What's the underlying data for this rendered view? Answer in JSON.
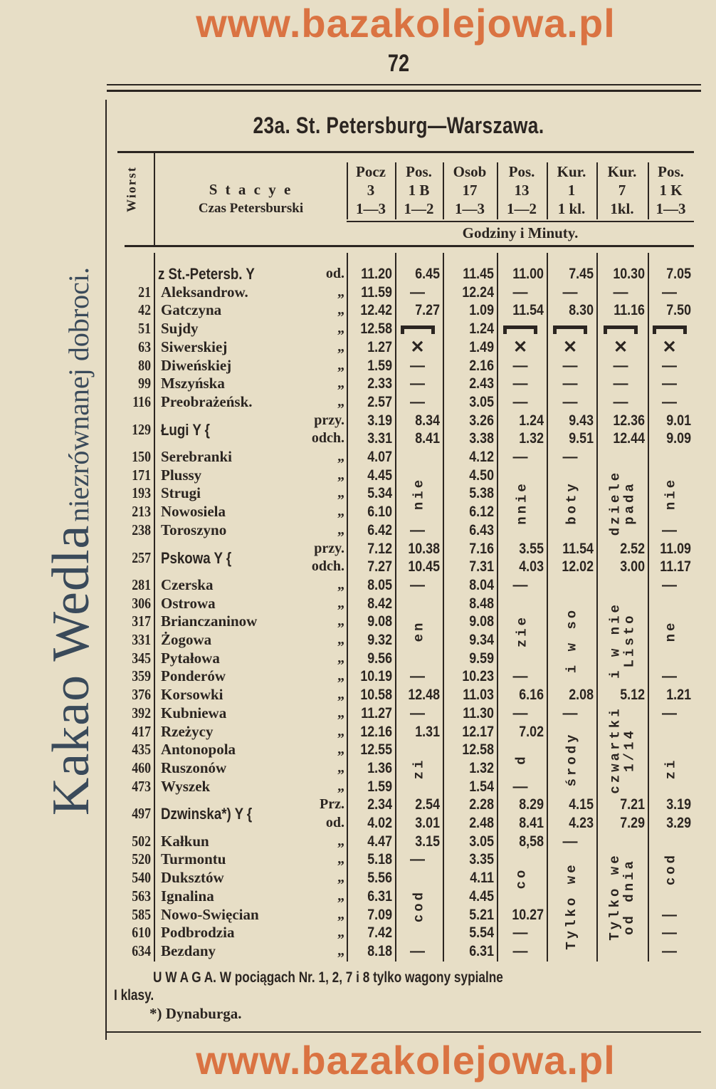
{
  "page_number": "72",
  "advert": {
    "brand": "Kakao Wedla",
    "slogan": "niezrównanej dobroci."
  },
  "watermark": "www.bazakolejowa.pl",
  "title": "23a. St. Petersburg—Warszawa.",
  "header": {
    "wiorst": "Wiorst",
    "stations_label": "S t a c y e",
    "time_zone": "Czas Petersburski",
    "units": "Godziny i Minuty.",
    "columns": [
      {
        "type": "Pocz",
        "number": "3",
        "classes": "1—3"
      },
      {
        "type": "Pos.",
        "number": "1 B",
        "classes": "1—2"
      },
      {
        "type": "Osob",
        "number": "17",
        "classes": "1—3"
      },
      {
        "type": "Pos.",
        "number": "13",
        "classes": "1—2"
      },
      {
        "type": "Kur.",
        "number": "1",
        "classes": "1 kl."
      },
      {
        "type": "Kur.",
        "number": "7",
        "classes": "1kl."
      },
      {
        "type": "Pos.",
        "number": "1 K",
        "classes": "1—3"
      }
    ]
  },
  "rows": [
    {
      "km": "",
      "station": "z St.-Petersb. Y",
      "suffix": "od.",
      "big": true,
      "times": [
        "11.20",
        "6.45",
        "11.45",
        "11.00",
        "7.45",
        "10.30",
        "7.05"
      ]
    },
    {
      "km": "21",
      "station": "Aleksandrow.",
      "suffix": "„",
      "times": [
        "11.59",
        "—",
        "12.24",
        "—",
        "—",
        "—",
        "—"
      ]
    },
    {
      "km": "42",
      "station": "Gatczyna",
      "suffix": "„",
      "times": [
        "12.42",
        "7.27",
        "1.09",
        "11.54",
        "8.30",
        "11.16",
        "7.50"
      ]
    },
    {
      "km": "51",
      "station": "Sujdy",
      "suffix": "„",
      "times": [
        "12.58",
        "bed",
        "1.24",
        "bed",
        "bed",
        "bed",
        "bed"
      ]
    },
    {
      "km": "63",
      "station": "Siwerskiej",
      "suffix": "„",
      "times": [
        "1.27",
        "x",
        "1.49",
        "x",
        "x",
        "x",
        "x"
      ]
    },
    {
      "km": "80",
      "station": "Diweńskiej",
      "suffix": "„",
      "times": [
        "1.59",
        "—",
        "2.16",
        "—",
        "—",
        "—",
        "—"
      ]
    },
    {
      "km": "99",
      "station": "Mszyńska",
      "suffix": "„",
      "times": [
        "2.33",
        "—",
        "2.43",
        "—",
        "—",
        "—",
        "—"
      ]
    },
    {
      "km": "116",
      "station": "Preobrażeńsk.",
      "suffix": "„",
      "times": [
        "2.57",
        "—",
        "3.05",
        "—",
        "—",
        "—",
        "—"
      ]
    },
    {
      "km": "129",
      "station": "Ługi Y {",
      "suffix": "przy.",
      "big": true,
      "times": [
        "3.19",
        "8.34",
        "3.26",
        "1.24",
        "9.43",
        "12.36",
        "9.01"
      ]
    },
    {
      "km": "",
      "station": "",
      "suffix": "odch.",
      "times": [
        "3.31",
        "8.41",
        "3.38",
        "1.32",
        "9.51",
        "12.44",
        "9.09"
      ]
    },
    {
      "km": "150",
      "station": "Serebranki",
      "suffix": "„",
      "times": [
        "4.07",
        "",
        "4.12",
        "—",
        "—",
        "",
        ""
      ]
    },
    {
      "km": "171",
      "station": "Plussy",
      "suffix": "„",
      "times": [
        "4.45",
        "",
        "4.50",
        "",
        "",
        "",
        ""
      ]
    },
    {
      "km": "193",
      "station": "Strugi",
      "suffix": "„",
      "times": [
        "5.34",
        "",
        "5.38",
        "",
        "",
        "",
        ""
      ]
    },
    {
      "km": "213",
      "station": "Nowosiela",
      "suffix": "„",
      "times": [
        "6.10",
        "",
        "6.12",
        "",
        "",
        "",
        ""
      ]
    },
    {
      "km": "238",
      "station": "Toroszyno",
      "suffix": "„",
      "times": [
        "6.42",
        "—",
        "6.43",
        "",
        "",
        "",
        "—"
      ]
    },
    {
      "km": "257",
      "station": "Pskowa Y {",
      "suffix": "przy.",
      "big": true,
      "times": [
        "7.12",
        "10.38",
        "7.16",
        "3.55",
        "11.54",
        "2.52",
        "11.09"
      ]
    },
    {
      "km": "",
      "station": "",
      "suffix": "odch.",
      "times": [
        "7.27",
        "10.45",
        "7.31",
        "4.03",
        "12.02",
        "3.00",
        "11.17"
      ]
    },
    {
      "km": "281",
      "station": "Czerska",
      "suffix": "„",
      "times": [
        "8.05",
        "—",
        "8.04",
        "—",
        "",
        "",
        "—"
      ]
    },
    {
      "km": "306",
      "station": "Ostrowa",
      "suffix": "„",
      "times": [
        "8.42",
        "",
        "8.48",
        "",
        "",
        "",
        ""
      ]
    },
    {
      "km": "317",
      "station": "Brianczaninow",
      "suffix": "„",
      "times": [
        "9.08",
        "",
        "9.08",
        "",
        "",
        "",
        ""
      ]
    },
    {
      "km": "331",
      "station": "Żogowa",
      "suffix": "„",
      "times": [
        "9.32",
        "",
        "9.34",
        "",
        "",
        "",
        ""
      ]
    },
    {
      "km": "345",
      "station": "Pytałowa",
      "suffix": "„",
      "times": [
        "9.56",
        "",
        "9.59",
        "",
        "",
        "",
        ""
      ]
    },
    {
      "km": "359",
      "station": "Ponderów",
      "suffix": "„",
      "times": [
        "10.19",
        "—",
        "10.23",
        "—",
        "",
        "",
        "—"
      ]
    },
    {
      "km": "376",
      "station": "Korsowki",
      "suffix": "„",
      "times": [
        "10.58",
        "12.48",
        "11.03",
        "6.16",
        "2.08",
        "5.12",
        "1.21"
      ]
    },
    {
      "km": "392",
      "station": "Kubniewa",
      "suffix": "„",
      "times": [
        "11.27",
        "—",
        "11.30",
        "—",
        "—",
        "",
        "—"
      ]
    },
    {
      "km": "417",
      "station": "Rzeżycy",
      "suffix": "„",
      "times": [
        "12.16",
        "1.31",
        "12.17",
        "7.02",
        "",
        "",
        ""
      ]
    },
    {
      "km": "435",
      "station": "Antonopola",
      "suffix": "„",
      "times": [
        "12.55",
        "",
        "12.58",
        "",
        "",
        "",
        ""
      ]
    },
    {
      "km": "460",
      "station": "Ruszonów",
      "suffix": "„",
      "times": [
        "1.36",
        "",
        "1.32",
        "",
        "",
        "",
        ""
      ]
    },
    {
      "km": "473",
      "station": "Wyszek",
      "suffix": "„",
      "times": [
        "1.59",
        "",
        "1.54",
        "—",
        "",
        "",
        ""
      ]
    },
    {
      "km": "497",
      "station": "Dzwinska*) Y {",
      "suffix": "Prz.",
      "big": true,
      "times": [
        "2.34",
        "2.54",
        "2.28",
        "8.29",
        "4.15",
        "7.21",
        "3.19"
      ]
    },
    {
      "km": "",
      "station": "",
      "suffix": "od.",
      "times": [
        "4.02",
        "3.01",
        "2.48",
        "8.41",
        "4.23",
        "7.29",
        "3.29"
      ]
    },
    {
      "km": "502",
      "station": "Kałkun",
      "suffix": "„",
      "times": [
        "4.47",
        "3.15",
        "3.05",
        "8,58",
        "—",
        "",
        ""
      ]
    },
    {
      "km": "520",
      "station": "Turmontu",
      "suffix": "„",
      "times": [
        "5.18",
        "—",
        "3.35",
        "",
        "",
        "",
        ""
      ]
    },
    {
      "km": "540",
      "station": "Duksztów",
      "suffix": "„",
      "times": [
        "5.56",
        "",
        "4.11",
        "",
        "",
        "",
        ""
      ]
    },
    {
      "km": "563",
      "station": "Ignalina",
      "suffix": "„",
      "times": [
        "6.31",
        "",
        "4.45",
        "",
        "",
        "",
        ""
      ]
    },
    {
      "km": "585",
      "station": "Nowo-Swięcian",
      "suffix": "„",
      "times": [
        "7.09",
        "",
        "5.21",
        "10.27",
        "",
        "",
        "—"
      ]
    },
    {
      "km": "610",
      "station": "Podbrodzia",
      "suffix": "„",
      "times": [
        "7.42",
        "",
        "5.54",
        "—",
        "",
        "",
        "—"
      ]
    },
    {
      "km": "634",
      "station": "Bezdany",
      "suffix": "„",
      "times": [
        "8.18",
        "—",
        "6.31",
        "—",
        "",
        "",
        "—"
      ]
    }
  ],
  "vertical_notes": [
    {
      "col": 1,
      "from": 11,
      "to": 13,
      "lines": [
        "nie"
      ]
    },
    {
      "col": 1,
      "from": 18,
      "to": 21,
      "lines": [
        "en"
      ]
    },
    {
      "col": 1,
      "from": 26,
      "to": 28,
      "lines": [
        "zi"
      ]
    },
    {
      "col": 1,
      "from": 33,
      "to": 36,
      "lines": [
        "cod"
      ]
    },
    {
      "col": 3,
      "from": 11,
      "to": 14,
      "lines": [
        "nnie"
      ]
    },
    {
      "col": 3,
      "from": 18,
      "to": 21,
      "lines": [
        "zie"
      ]
    },
    {
      "col": 3,
      "from": 26,
      "to": 27,
      "lines": [
        "d"
      ]
    },
    {
      "col": 3,
      "from": 32,
      "to": 34,
      "lines": [
        "co"
      ]
    },
    {
      "col": 4,
      "from": 11,
      "to": 14,
      "lines": [
        "boty"
      ]
    },
    {
      "col": 4,
      "from": 18,
      "to": 22,
      "lines": [
        "i w so"
      ]
    },
    {
      "col": 4,
      "from": 25,
      "to": 28,
      "lines": [
        "środy"
      ]
    },
    {
      "col": 4,
      "from": 32,
      "to": 37,
      "lines": [
        "Tylko we"
      ]
    },
    {
      "col": 5,
      "from": 11,
      "to": 14,
      "lines": [
        "dziele",
        "pada"
      ]
    },
    {
      "col": 5,
      "from": 18,
      "to": 22,
      "lines": [
        "i w nie",
        "Listo"
      ]
    },
    {
      "col": 5,
      "from": 24,
      "to": 28,
      "lines": [
        "czwartki",
        "1/14"
      ]
    },
    {
      "col": 5,
      "from": 31,
      "to": 37,
      "lines": [
        "Tylko we",
        "od dnia"
      ]
    },
    {
      "col": 6,
      "from": 11,
      "to": 13,
      "lines": [
        "nie"
      ]
    },
    {
      "col": 6,
      "from": 18,
      "to": 21,
      "lines": [
        "ne"
      ]
    },
    {
      "col": 6,
      "from": 26,
      "to": 28,
      "lines": [
        "zi"
      ]
    },
    {
      "col": 6,
      "from": 31,
      "to": 34,
      "lines": [
        "cod"
      ]
    }
  ],
  "footer": {
    "note": "U W A G A.  W pociągach Nr. 1, 2, 7 i 8 tylko wagony sypialne",
    "note_cont": "I klasy.",
    "footnote": "*) Dynaburga."
  }
}
